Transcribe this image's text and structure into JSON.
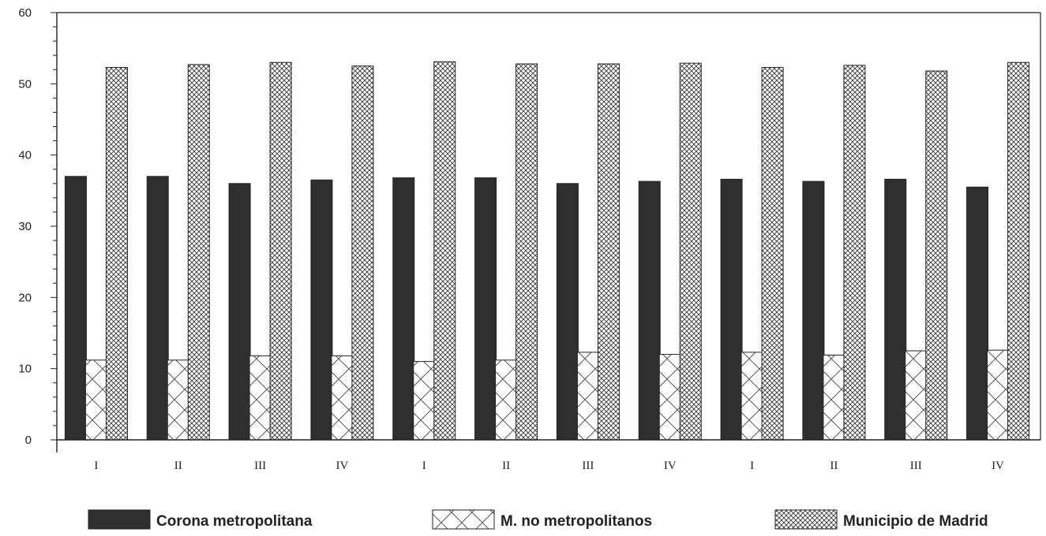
{
  "chart_data": {
    "type": "bar",
    "categories": [
      "I",
      "II",
      "III",
      "IV",
      "I",
      "II",
      "III",
      "IV",
      "I",
      "II",
      "III",
      "IV"
    ],
    "series": [
      {
        "name": "Corona metropolitana",
        "values": [
          37.0,
          37.0,
          36.0,
          36.5,
          36.8,
          36.8,
          36.0,
          36.3,
          36.6,
          36.3,
          36.6,
          35.5
        ],
        "fill": "#2f2f2f"
      },
      {
        "name": "M. no metropolitanos",
        "values": [
          11.2,
          11.2,
          11.8,
          11.8,
          11.0,
          11.2,
          12.3,
          12.0,
          12.3,
          11.9,
          12.5,
          12.6
        ],
        "fill": "pattern-cross"
      },
      {
        "name": "Municipio de Madrid",
        "values": [
          52.3,
          52.7,
          53.0,
          52.5,
          53.1,
          52.8,
          52.8,
          52.9,
          52.3,
          52.6,
          51.8,
          53.0
        ],
        "fill": "pattern-fine-cross"
      }
    ],
    "yticks": [
      0,
      10,
      20,
      30,
      40,
      50,
      60
    ],
    "ylim": [
      0,
      60
    ],
    "title": "",
    "xlabel": "",
    "ylabel": "",
    "grid": false,
    "legend_position": "bottom"
  }
}
